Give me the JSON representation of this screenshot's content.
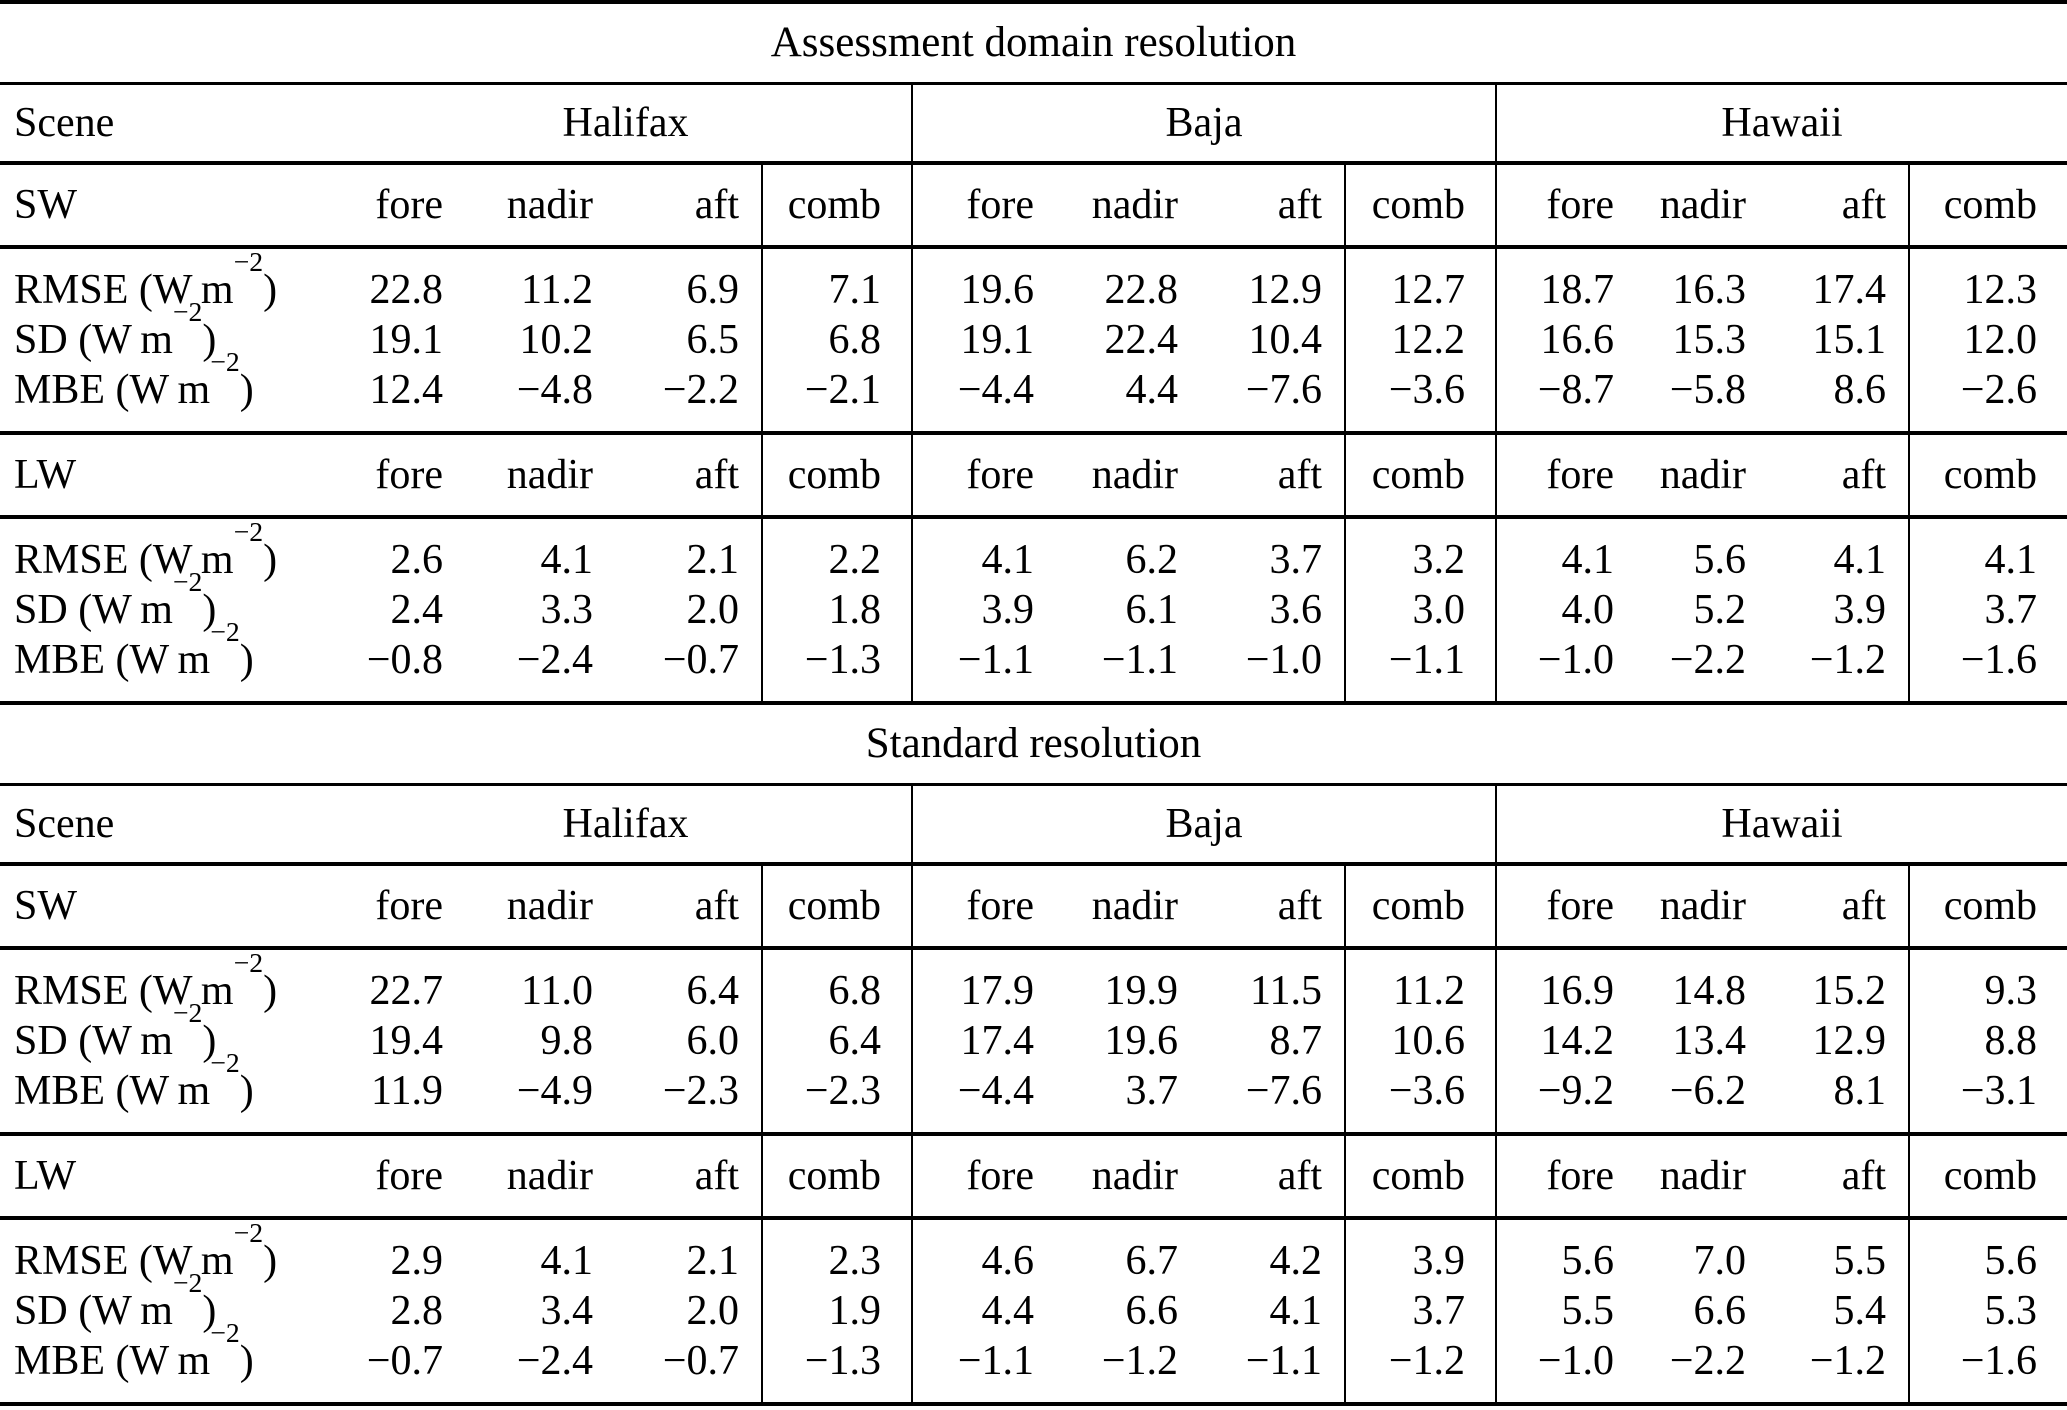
{
  "page": {
    "background_color": "#ffffff",
    "text_color": "#000000",
    "rule_color": "#000000"
  },
  "scene_header_label": "Scene",
  "scene_groups": [
    "Halifax",
    "Baja",
    "Hawaii"
  ],
  "view_columns": [
    "fore",
    "nadir",
    "aft",
    "comb"
  ],
  "metrics": [
    {
      "name": "RMSE",
      "unit_pre": " (W m",
      "unit_sup": "−2",
      "unit_post": ")"
    },
    {
      "name": "SD",
      "unit_pre": " (W m",
      "unit_sup": "−2",
      "unit_post": ")"
    },
    {
      "name": "MBE",
      "unit_pre": " (W m",
      "unit_sup": "−2",
      "unit_post": ")"
    }
  ],
  "sections": [
    {
      "title": "Assessment domain resolution",
      "blocks": [
        {
          "band": "SW",
          "rows": [
            {
              "metric": 0,
              "values": [
                "22.8",
                "11.2",
                "6.9",
                "7.1",
                "19.6",
                "22.8",
                "12.9",
                "12.7",
                "18.7",
                "16.3",
                "17.4",
                "12.3"
              ]
            },
            {
              "metric": 1,
              "values": [
                "19.1",
                "10.2",
                "6.5",
                "6.8",
                "19.1",
                "22.4",
                "10.4",
                "12.2",
                "16.6",
                "15.3",
                "15.1",
                "12.0"
              ]
            },
            {
              "metric": 2,
              "values": [
                "12.4",
                "−4.8",
                "−2.2",
                "−2.1",
                "−4.4",
                "4.4",
                "−7.6",
                "−3.6",
                "−8.7",
                "−5.8",
                "8.6",
                "−2.6"
              ]
            }
          ]
        },
        {
          "band": "LW",
          "rows": [
            {
              "metric": 0,
              "values": [
                "2.6",
                "4.1",
                "2.1",
                "2.2",
                "4.1",
                "6.2",
                "3.7",
                "3.2",
                "4.1",
                "5.6",
                "4.1",
                "4.1"
              ]
            },
            {
              "metric": 1,
              "values": [
                "2.4",
                "3.3",
                "2.0",
                "1.8",
                "3.9",
                "6.1",
                "3.6",
                "3.0",
                "4.0",
                "5.2",
                "3.9",
                "3.7"
              ]
            },
            {
              "metric": 2,
              "values": [
                "−0.8",
                "−2.4",
                "−0.7",
                "−1.3",
                "−1.1",
                "−1.1",
                "−1.0",
                "−1.1",
                "−1.0",
                "−2.2",
                "−1.2",
                "−1.6"
              ]
            }
          ]
        }
      ]
    },
    {
      "title": "Standard resolution",
      "blocks": [
        {
          "band": "SW",
          "rows": [
            {
              "metric": 0,
              "values": [
                "22.7",
                "11.0",
                "6.4",
                "6.8",
                "17.9",
                "19.9",
                "11.5",
                "11.2",
                "16.9",
                "14.8",
                "15.2",
                "9.3"
              ]
            },
            {
              "metric": 1,
              "values": [
                "19.4",
                "9.8",
                "6.0",
                "6.4",
                "17.4",
                "19.6",
                "8.7",
                "10.6",
                "14.2",
                "13.4",
                "12.9",
                "8.8"
              ]
            },
            {
              "metric": 2,
              "values": [
                "11.9",
                "−4.9",
                "−2.3",
                "−2.3",
                "−4.4",
                "3.7",
                "−7.6",
                "−3.6",
                "−9.2",
                "−6.2",
                "8.1",
                "−3.1"
              ]
            }
          ]
        },
        {
          "band": "LW",
          "rows": [
            {
              "metric": 0,
              "values": [
                "2.9",
                "4.1",
                "2.1",
                "2.3",
                "4.6",
                "6.7",
                "4.2",
                "3.9",
                "5.6",
                "7.0",
                "5.5",
                "5.6"
              ]
            },
            {
              "metric": 1,
              "values": [
                "2.8",
                "3.4",
                "2.0",
                "1.9",
                "4.4",
                "6.6",
                "4.1",
                "3.7",
                "5.5",
                "6.6",
                "5.4",
                "5.3"
              ]
            },
            {
              "metric": 2,
              "values": [
                "−0.7",
                "−2.4",
                "−0.7",
                "−1.3",
                "−1.1",
                "−1.2",
                "−1.1",
                "−1.2",
                "−1.0",
                "−2.2",
                "−1.2",
                "−1.6"
              ]
            }
          ]
        }
      ]
    }
  ]
}
